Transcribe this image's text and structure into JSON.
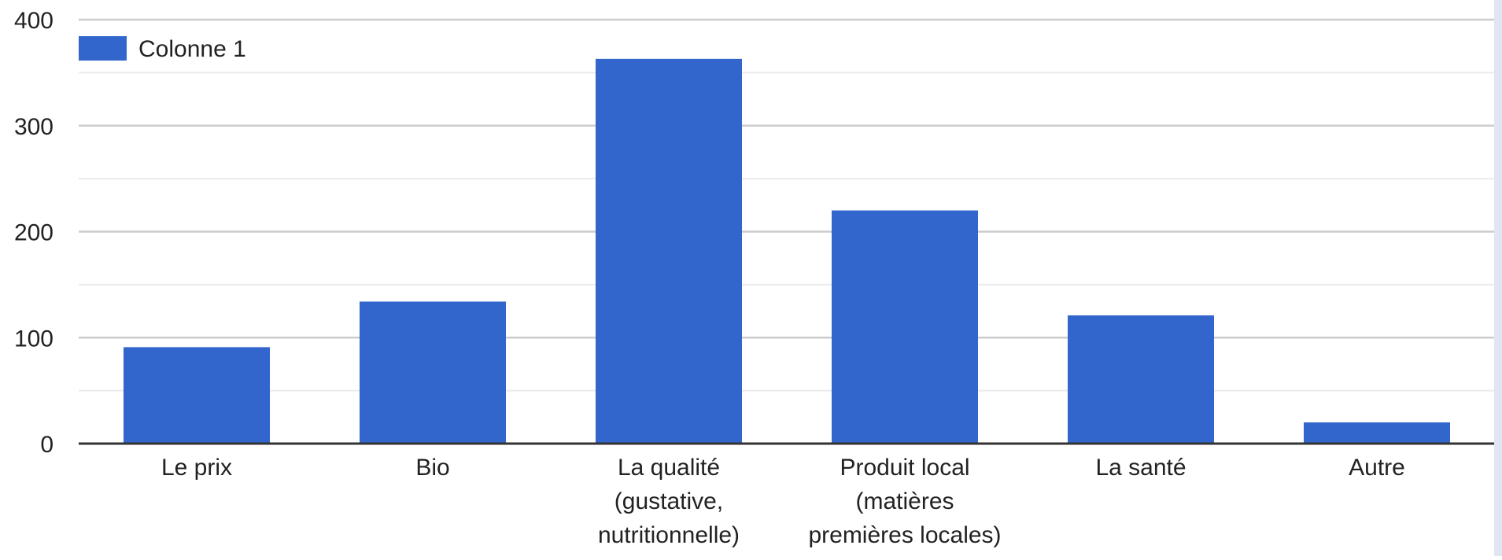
{
  "chart_data": {
    "type": "bar",
    "categories": [
      [
        "Le prix"
      ],
      [
        "Bio"
      ],
      [
        "La qualité",
        "(gustative,",
        "nutritionnelle)"
      ],
      [
        "Produit local",
        "(matières",
        "premières locales)"
      ],
      [
        "La santé"
      ],
      [
        "Autre"
      ]
    ],
    "series": [
      {
        "name": "Colonne 1",
        "values": [
          91,
          134,
          363,
          220,
          121,
          20
        ]
      }
    ],
    "ylim": [
      0,
      400
    ],
    "yticks": [
      "0",
      "100",
      "200",
      "300",
      "400"
    ],
    "grid": true,
    "minor_grid": true,
    "legend_position": "top-left",
    "colors": {
      "bar": "#3366cc",
      "grid_major": "#cccccc",
      "grid_minor": "#ebebeb",
      "axis": "#333333",
      "text": "#222222"
    }
  }
}
